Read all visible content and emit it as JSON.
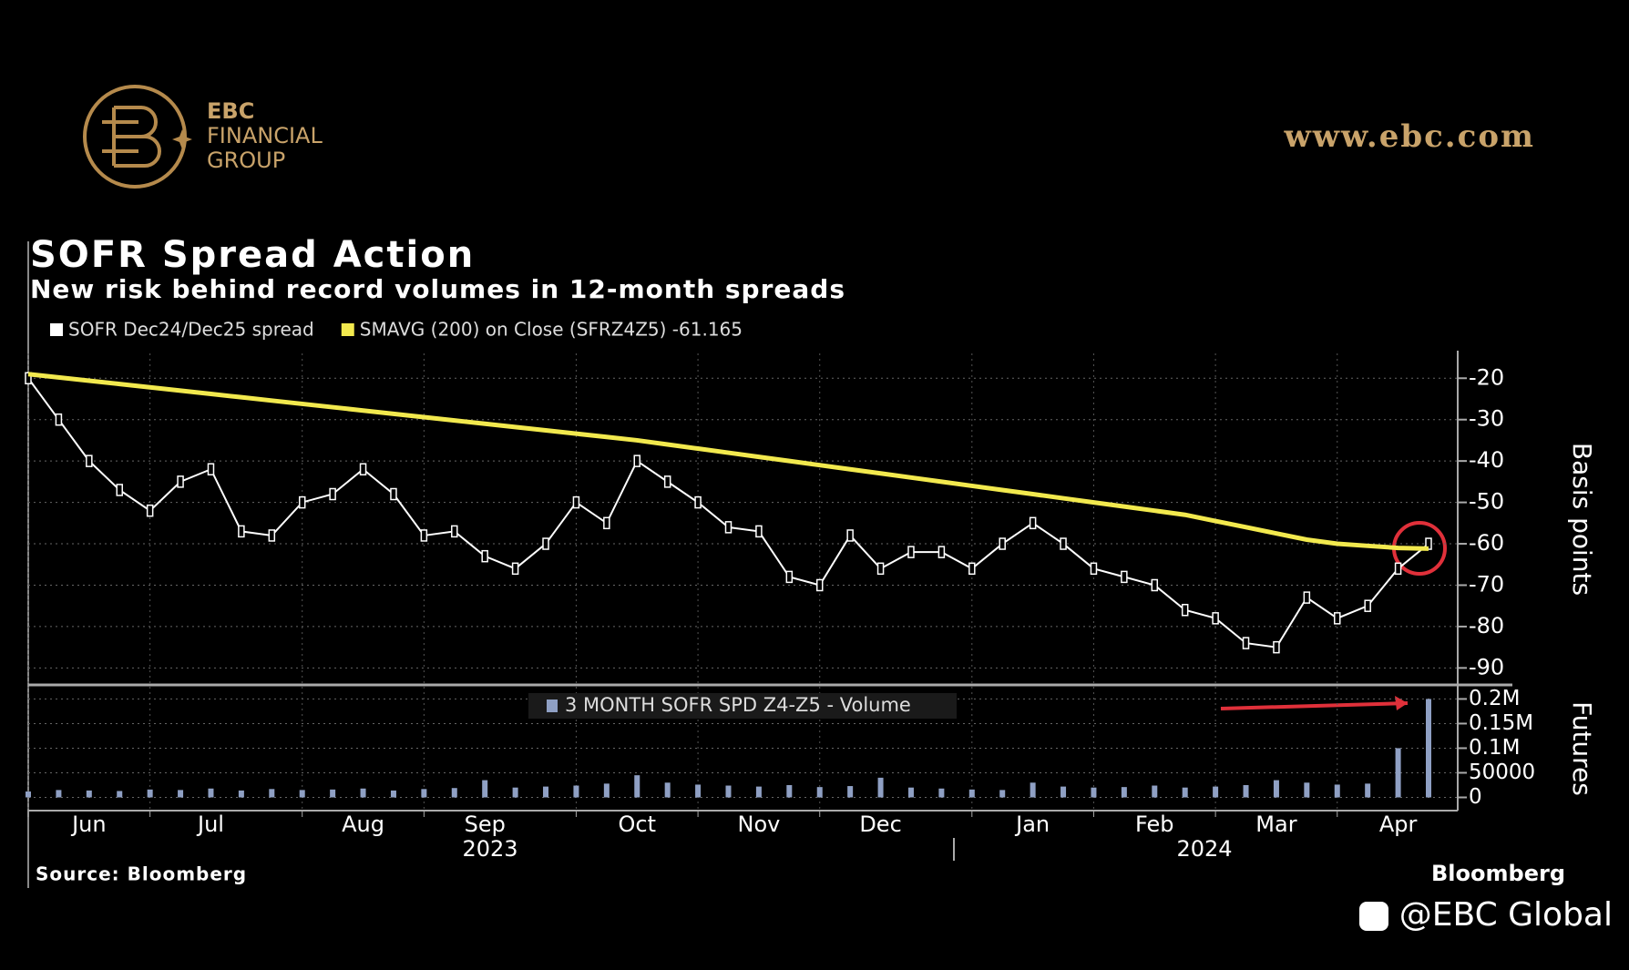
{
  "branding": {
    "line1": "EBC",
    "line2": "FINANCIAL",
    "line3": "GROUP",
    "website": "www.ebc.com",
    "social": "@EBC Global"
  },
  "chart_data": [
    {
      "type": "line",
      "title": "SOFR Spread Action",
      "subtitle": "New risk behind record volumes in 12-month spreads",
      "y_label": "Basis points",
      "source": "Source: Bloomberg",
      "brand": "Bloomberg",
      "year_labels": [
        "2023",
        "2024"
      ],
      "categories": [
        null,
        null,
        "Jun",
        null,
        null,
        null,
        "Jul",
        null,
        null,
        null,
        null,
        "Aug",
        null,
        null,
        null,
        "Sep",
        null,
        null,
        null,
        null,
        "Oct",
        null,
        null,
        null,
        "Nov",
        null,
        null,
        null,
        "Dec",
        null,
        null,
        null,
        null,
        "Jan",
        null,
        null,
        null,
        "Feb",
        null,
        null,
        null,
        "Mar",
        null,
        null,
        null,
        "Apr",
        null
      ],
      "series": [
        {
          "name": "SOFR Dec24/Dec25 spread",
          "color": "#ffffff",
          "values": [
            -20,
            -30,
            -40,
            -47,
            -52,
            -45,
            -42,
            -57,
            -58,
            -50,
            -48,
            -42,
            -48,
            -58,
            -57,
            -63,
            -66,
            -60,
            -50,
            -55,
            -40,
            -45,
            -50,
            -56,
            -57,
            -68,
            -70,
            -58,
            -66,
            -62,
            -62,
            -66,
            -60,
            -55,
            -60,
            -66,
            -68,
            -70,
            -76,
            -78,
            -84,
            -85,
            -73,
            -78,
            -75,
            -66,
            -60
          ]
        },
        {
          "name": "SMAVG (200)  on Close (SFRZ4Z5) -61.165",
          "color": "#f2e94e",
          "values": [
            -19,
            -19.8,
            -20.6,
            -21.4,
            -22.2,
            -23,
            -23.8,
            -24.6,
            -25.4,
            -26.2,
            -27,
            -27.8,
            -28.6,
            -29.4,
            -30.2,
            -31,
            -31.8,
            -32.6,
            -33.4,
            -34.2,
            -35,
            -36,
            -37,
            -38,
            -39,
            -40,
            -41,
            -42,
            -43,
            -44,
            -45,
            -46,
            -47,
            -48,
            -49,
            -50,
            -51,
            -52,
            -53,
            -54.5,
            -56,
            -57.5,
            -59,
            -60,
            -60.5,
            -61,
            -61.165
          ]
        }
      ],
      "ylim": [
        -93,
        -14
      ],
      "yticks": [
        -90,
        -80,
        -70,
        -60,
        -50,
        -40,
        -30,
        -20
      ],
      "grid": true
    },
    {
      "type": "bar",
      "y_label": "Futures",
      "series": [
        {
          "name": "3 MONTH SOFR SPD Z4-Z5 - Volume",
          "color": "#8fa0c4",
          "values": [
            12000,
            15000,
            14000,
            13000,
            16000,
            15000,
            18000,
            14000,
            17000,
            15000,
            16000,
            18000,
            14000,
            17000,
            19000,
            35000,
            20000,
            22000,
            24000,
            28000,
            45000,
            30000,
            26000,
            24000,
            22000,
            25000,
            21000,
            23000,
            40000,
            20000,
            18000,
            16000,
            15000,
            30000,
            22000,
            20000,
            21000,
            24000,
            20000,
            22000,
            25000,
            35000,
            30000,
            26000,
            28000,
            100000,
            200000
          ]
        }
      ],
      "ylim": [
        -25000,
        223000
      ],
      "yticks": [
        0,
        50000,
        {
          "value": 100000,
          "label": "0.1M"
        },
        {
          "value": 150000,
          "label": "0.15M"
        },
        {
          "value": 200000,
          "label": "0.2M"
        }
      ],
      "grid": true
    }
  ]
}
